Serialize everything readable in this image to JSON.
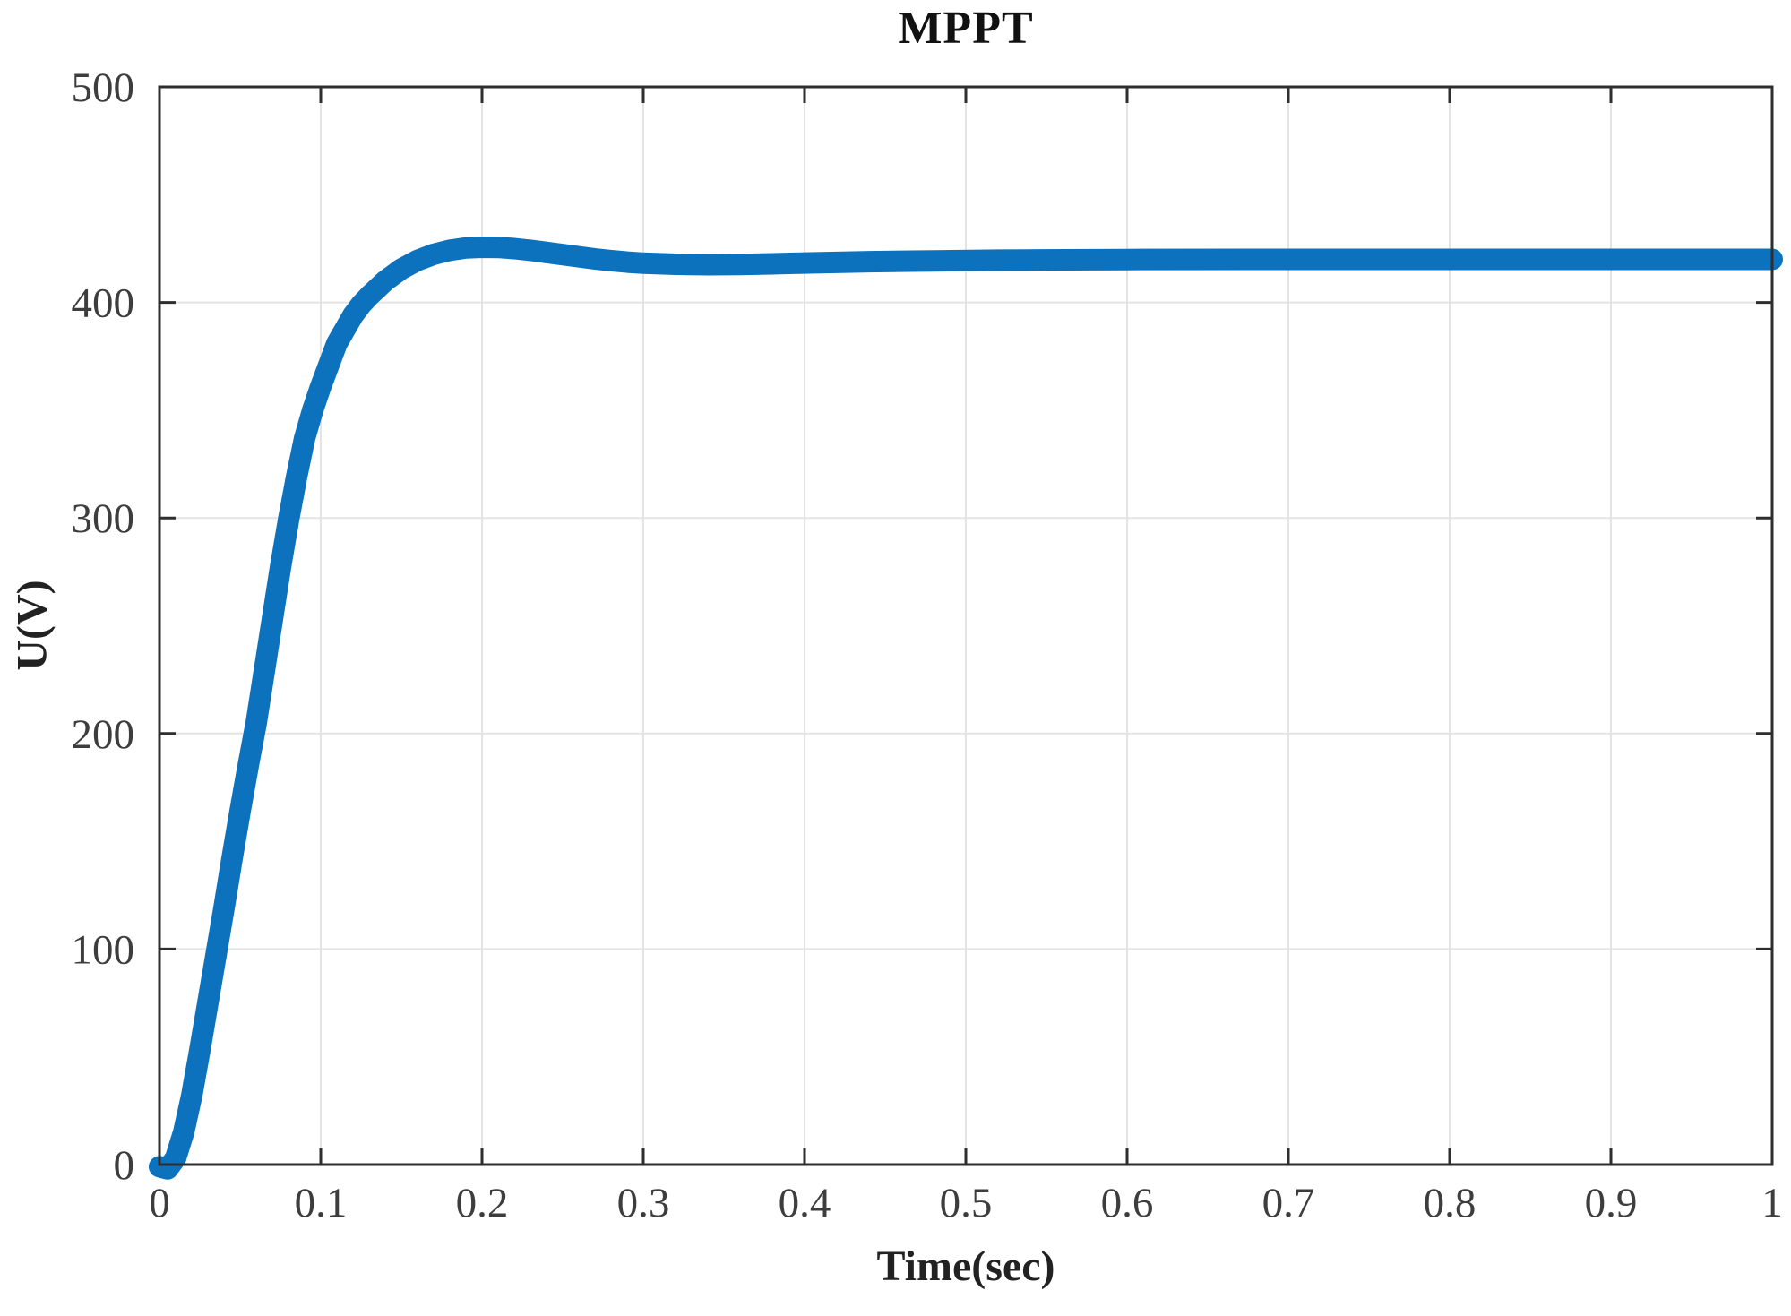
{
  "chart_data": {
    "type": "line",
    "title": "MPPT",
    "xlabel": "Time(sec)",
    "ylabel": "U(V)",
    "xlim": [
      0,
      1
    ],
    "ylim": [
      0,
      500
    ],
    "x_ticks": [
      0,
      0.1,
      0.2,
      0.3,
      0.4,
      0.5,
      0.6,
      0.7,
      0.8,
      0.9,
      1
    ],
    "x_tick_labels": [
      "0",
      "0.1",
      "0.2",
      "0.3",
      "0.4",
      "0.5",
      "0.6",
      "0.7",
      "0.8",
      "0.9",
      "1"
    ],
    "y_ticks": [
      0,
      100,
      200,
      300,
      400,
      500
    ],
    "y_tick_labels": [
      "0",
      "100",
      "200",
      "300",
      "400",
      "500"
    ],
    "grid": true,
    "legend": false,
    "box": true,
    "colors": {
      "line": "#0c72bd",
      "grid": "#e4e4e4",
      "axis": "#2e2e2e",
      "tick_label": "#3d3d3d",
      "background": "#ffffff"
    },
    "series": [
      {
        "name": "U",
        "points": [
          [
            0,
            -1
          ],
          [
            0.005,
            -2
          ],
          [
            0.01,
            3
          ],
          [
            0.015,
            15
          ],
          [
            0.02,
            32
          ],
          [
            0.025,
            53
          ],
          [
            0.03,
            75
          ],
          [
            0.035,
            97
          ],
          [
            0.04,
            119
          ],
          [
            0.045,
            142
          ],
          [
            0.05,
            164
          ],
          [
            0.055,
            185
          ],
          [
            0.06,
            205
          ],
          [
            0.065,
            229
          ],
          [
            0.07,
            253
          ],
          [
            0.075,
            277
          ],
          [
            0.08,
            299
          ],
          [
            0.085,
            319
          ],
          [
            0.09,
            337
          ],
          [
            0.095,
            350
          ],
          [
            0.1,
            361
          ],
          [
            0.11,
            381
          ],
          [
            0.12,
            394
          ],
          [
            0.125,
            399
          ],
          [
            0.13,
            403
          ],
          [
            0.14,
            410
          ],
          [
            0.15,
            415.5
          ],
          [
            0.16,
            419.5
          ],
          [
            0.17,
            422.3
          ],
          [
            0.18,
            424.2
          ],
          [
            0.19,
            425.3
          ],
          [
            0.2,
            425.6
          ],
          [
            0.21,
            425.5
          ],
          [
            0.22,
            425
          ],
          [
            0.23,
            424.2
          ],
          [
            0.24,
            423.2
          ],
          [
            0.25,
            422.2
          ],
          [
            0.26,
            421.2
          ],
          [
            0.27,
            420.2
          ],
          [
            0.28,
            419.4
          ],
          [
            0.29,
            418.7
          ],
          [
            0.3,
            418.2
          ],
          [
            0.32,
            417.7
          ],
          [
            0.34,
            417.5
          ],
          [
            0.36,
            417.6
          ],
          [
            0.38,
            417.9
          ],
          [
            0.4,
            418.3
          ],
          [
            0.44,
            418.9
          ],
          [
            0.48,
            419.3
          ],
          [
            0.52,
            419.6
          ],
          [
            0.56,
            419.8
          ],
          [
            0.6,
            419.9
          ],
          [
            0.7,
            420
          ],
          [
            0.8,
            420
          ],
          [
            0.9,
            420
          ],
          [
            1,
            420
          ]
        ]
      }
    ]
  }
}
